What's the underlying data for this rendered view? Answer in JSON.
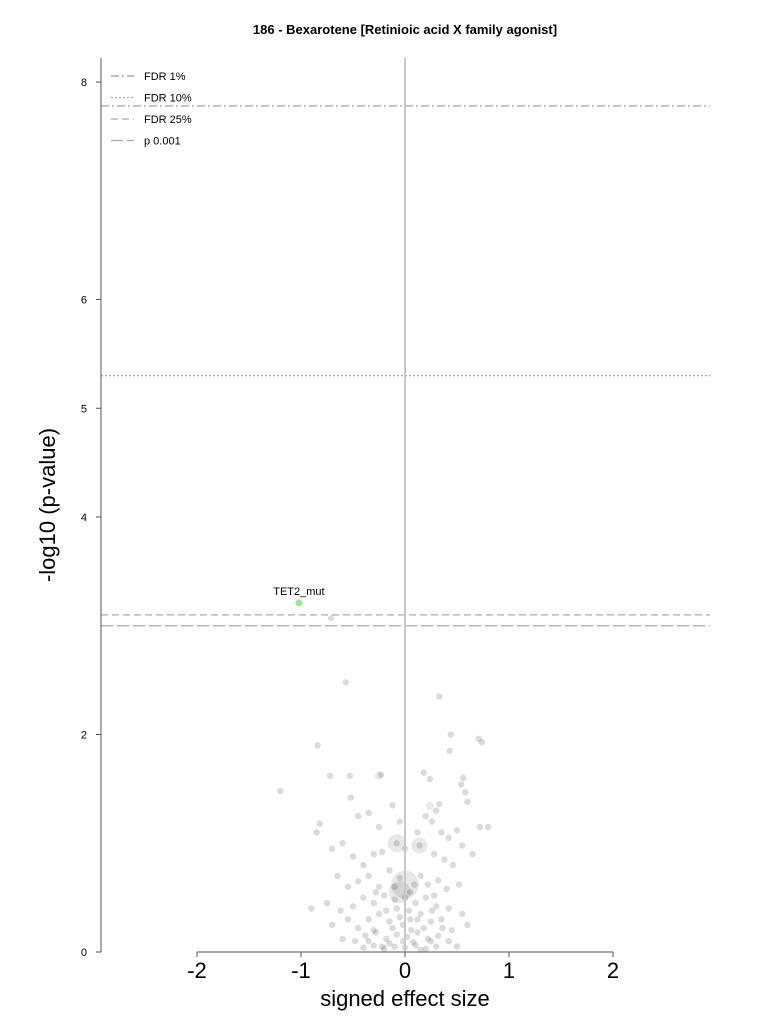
{
  "chart_data": {
    "type": "scatter",
    "title": "186 - Bexarotene [Retinioic acid X family agonist]",
    "xlabel": "signed effect size",
    "ylabel": "-log10 (p-value)",
    "xlim": [
      -2.0,
      2.0
    ],
    "ylim": [
      0,
      8
    ],
    "xticks": [
      "-2",
      "-1",
      "0",
      "1",
      "2"
    ],
    "yticks": [
      "0",
      "2",
      "4",
      "5",
      "6",
      "8"
    ],
    "grid": false,
    "legend_position": "top-left",
    "thresholds": [
      {
        "label": "FDR 1%",
        "y": 7.78,
        "style": "dashdot"
      },
      {
        "label": "FDR 10%",
        "y": 5.3,
        "style": "dotted"
      },
      {
        "label": "FDR 25%",
        "y": 3.1,
        "style": "dashed"
      },
      {
        "label": "p 0.001",
        "y": 3.0,
        "style": "longdash"
      }
    ],
    "highlight": {
      "label": "TET2_mut",
      "x": -1.02,
      "y": 3.21,
      "color": "#90ee90"
    },
    "points": [
      [
        -0.71,
        3.07
      ],
      [
        -0.57,
        2.48
      ],
      [
        0.33,
        2.35
      ],
      [
        0.44,
        2.0
      ],
      [
        0.43,
        1.85
      ],
      [
        0.71,
        1.96
      ],
      [
        0.74,
        1.93
      ],
      [
        -0.84,
        1.9
      ],
      [
        -1.2,
        1.48
      ],
      [
        -0.72,
        1.62
      ],
      [
        -0.53,
        1.62
      ],
      [
        -0.23,
        1.63
      ],
      [
        0.18,
        1.65
      ],
      [
        0.24,
        1.59
      ],
      [
        0.56,
        1.6
      ],
      [
        0.54,
        1.54
      ],
      [
        0.58,
        1.47
      ],
      [
        0.6,
        1.38
      ],
      [
        0.3,
        1.3
      ],
      [
        0.33,
        1.36
      ],
      [
        -0.52,
        1.42
      ],
      [
        -0.82,
        1.18
      ],
      [
        -0.85,
        1.1
      ],
      [
        -0.6,
        1.0
      ],
      [
        -0.45,
        1.25
      ],
      [
        -0.35,
        1.28
      ],
      [
        -0.25,
        1.15
      ],
      [
        -0.12,
        1.35
      ],
      [
        -0.05,
        1.2
      ],
      [
        0.12,
        1.1
      ],
      [
        0.2,
        1.25
      ],
      [
        0.26,
        1.2
      ],
      [
        0.35,
        1.1
      ],
      [
        0.42,
        1.05
      ],
      [
        0.5,
        1.12
      ],
      [
        0.55,
        0.98
      ],
      [
        0.72,
        1.15
      ],
      [
        0.8,
        1.15
      ],
      [
        0.65,
        0.9
      ],
      [
        -0.7,
        0.95
      ],
      [
        -0.5,
        0.88
      ],
      [
        -0.4,
        0.8
      ],
      [
        -0.3,
        0.9
      ],
      [
        -0.22,
        0.92
      ],
      [
        -0.08,
        1.0
      ],
      [
        0.0,
        0.95
      ],
      [
        0.14,
        0.98
      ],
      [
        0.28,
        0.9
      ],
      [
        0.38,
        0.85
      ],
      [
        0.46,
        0.8
      ],
      [
        -0.65,
        0.7
      ],
      [
        -0.55,
        0.6
      ],
      [
        -0.45,
        0.65
      ],
      [
        -0.35,
        0.7
      ],
      [
        -0.25,
        0.6
      ],
      [
        -0.15,
        0.75
      ],
      [
        -0.05,
        0.68
      ],
      [
        0.05,
        0.55
      ],
      [
        0.15,
        0.7
      ],
      [
        0.22,
        0.62
      ],
      [
        0.32,
        0.66
      ],
      [
        0.4,
        0.58
      ],
      [
        0.52,
        0.62
      ],
      [
        -0.9,
        0.4
      ],
      [
        -0.75,
        0.45
      ],
      [
        -0.62,
        0.38
      ],
      [
        -0.5,
        0.42
      ],
      [
        -0.4,
        0.5
      ],
      [
        -0.3,
        0.45
      ],
      [
        -0.2,
        0.52
      ],
      [
        -0.1,
        0.48
      ],
      [
        0.0,
        0.5
      ],
      [
        0.1,
        0.45
      ],
      [
        0.2,
        0.5
      ],
      [
        0.3,
        0.42
      ],
      [
        0.42,
        0.4
      ],
      [
        0.55,
        0.35
      ],
      [
        -0.7,
        0.25
      ],
      [
        -0.55,
        0.3
      ],
      [
        -0.45,
        0.22
      ],
      [
        -0.35,
        0.3
      ],
      [
        -0.25,
        0.35
      ],
      [
        -0.15,
        0.28
      ],
      [
        -0.05,
        0.32
      ],
      [
        0.05,
        0.3
      ],
      [
        0.15,
        0.35
      ],
      [
        0.25,
        0.28
      ],
      [
        0.35,
        0.3
      ],
      [
        0.45,
        0.2
      ],
      [
        0.6,
        0.25
      ],
      [
        -0.6,
        0.12
      ],
      [
        -0.48,
        0.1
      ],
      [
        -0.38,
        0.15
      ],
      [
        -0.28,
        0.18
      ],
      [
        -0.18,
        0.12
      ],
      [
        -0.08,
        0.16
      ],
      [
        0.02,
        0.14
      ],
      [
        0.12,
        0.18
      ],
      [
        0.22,
        0.12
      ],
      [
        0.32,
        0.15
      ],
      [
        0.42,
        0.1
      ],
      [
        0.5,
        0.05
      ],
      [
        -0.4,
        0.04
      ],
      [
        -0.3,
        0.06
      ],
      [
        -0.2,
        0.03
      ],
      [
        -0.1,
        0.05
      ],
      [
        0.0,
        0.04
      ],
      [
        0.1,
        0.06
      ],
      [
        0.2,
        0.03
      ],
      [
        0.3,
        0.05
      ],
      [
        -0.15,
        0.08
      ],
      [
        -0.02,
        0.1
      ],
      [
        0.08,
        0.09
      ],
      [
        0.18,
        0.22
      ],
      [
        -0.12,
        0.22
      ],
      [
        -0.02,
        0.25
      ],
      [
        0.06,
        0.2
      ],
      [
        -0.08,
        0.4
      ],
      [
        0.04,
        0.38
      ],
      [
        0.12,
        0.3
      ],
      [
        -0.18,
        0.38
      ],
      [
        0.26,
        0.38
      ],
      [
        -0.3,
        0.2
      ],
      [
        0.36,
        0.22
      ],
      [
        -0.22,
        0.05
      ],
      [
        0.15,
        0.02
      ],
      [
        0.25,
        0.1
      ],
      [
        -0.35,
        0.1
      ],
      [
        0.28,
        0.52
      ],
      [
        -0.28,
        0.55
      ],
      [
        0.09,
        0.62
      ],
      [
        -0.1,
        0.6
      ]
    ],
    "big_points": [
      [
        -0.08,
        1.0,
        9
      ],
      [
        0.14,
        0.98,
        8
      ],
      [
        -0.05,
        0.55,
        11
      ],
      [
        0.0,
        0.62,
        14
      ],
      [
        -0.25,
        1.62,
        4
      ],
      [
        0.24,
        1.34,
        4
      ]
    ]
  }
}
